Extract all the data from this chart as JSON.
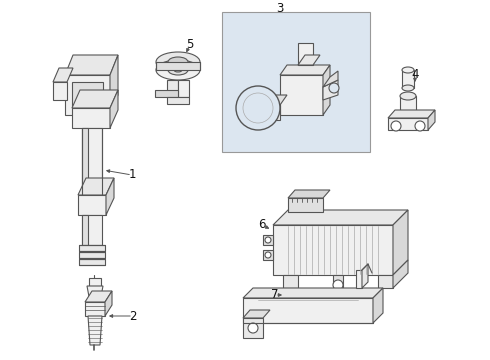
{
  "bg_color": "#ffffff",
  "line_color": "#555555",
  "label_color": "#111111",
  "box_fill": "#dce6f0",
  "fig_width": 4.9,
  "fig_height": 3.6,
  "dpi": 100
}
